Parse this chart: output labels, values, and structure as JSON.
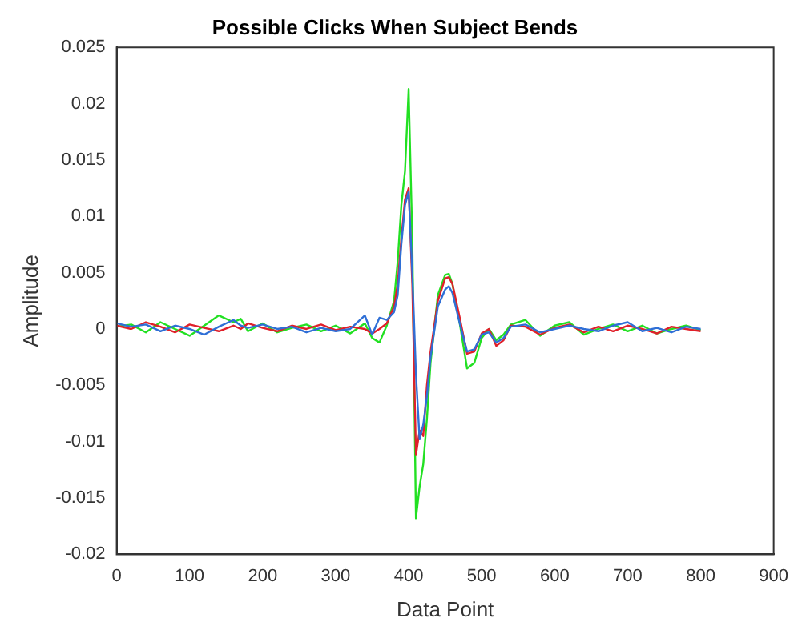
{
  "chart_data": {
    "type": "line",
    "title": "Possible Clicks When Subject Bends",
    "xlabel": "Data Point",
    "ylabel": "Amplitude",
    "x": [
      0,
      20,
      40,
      60,
      80,
      100,
      120,
      140,
      160,
      170,
      180,
      200,
      220,
      240,
      260,
      280,
      300,
      320,
      340,
      350,
      360,
      370,
      380,
      385,
      390,
      395,
      400,
      405,
      410,
      415,
      420,
      425,
      430,
      440,
      450,
      455,
      460,
      470,
      480,
      490,
      500,
      510,
      520,
      530,
      540,
      560,
      580,
      600,
      620,
      640,
      660,
      680,
      700,
      720,
      740,
      760,
      780,
      800
    ],
    "series": [
      {
        "color": "#2f6fd6",
        "values": [
          0.0005,
          0.0002,
          0.0004,
          -0.0002,
          0.0003,
          0.0,
          -0.0005,
          0.0002,
          0.0008,
          0.0003,
          0.0001,
          0.0004,
          0.0,
          0.0002,
          -0.0003,
          0.0001,
          -0.0002,
          0.0,
          0.0012,
          -0.0005,
          0.001,
          0.0008,
          0.0015,
          0.003,
          0.0075,
          0.011,
          0.0122,
          0.005,
          -0.004,
          -0.0098,
          -0.0085,
          -0.006,
          -0.0025,
          0.002,
          0.0035,
          0.0038,
          0.0032,
          0.0005,
          -0.002,
          -0.0018,
          -0.0005,
          -0.0003,
          -0.0012,
          -0.0008,
          0.0002,
          0.0004,
          -0.0003,
          0.0,
          0.0003,
          0.0,
          -0.0002,
          0.0003,
          0.0006,
          -0.0002,
          0.0001,
          -0.0003,
          0.0002,
          0.0
        ]
      },
      {
        "color": "#e0202a",
        "values": [
          0.0003,
          0.0,
          0.0006,
          0.0002,
          -0.0003,
          0.0004,
          0.0001,
          -0.0002,
          0.0003,
          0.0,
          0.0005,
          0.0001,
          -0.0002,
          0.0003,
          0.0,
          0.0004,
          -0.0001,
          0.0002,
          0.0,
          -0.0004,
          0.0,
          0.0005,
          0.002,
          0.004,
          0.008,
          0.0115,
          0.0125,
          0.004,
          -0.0112,
          -0.009,
          -0.0095,
          -0.005,
          -0.002,
          0.0025,
          0.0045,
          0.0046,
          0.004,
          0.001,
          -0.0022,
          -0.002,
          -0.0004,
          0.0,
          -0.0015,
          -0.001,
          0.0003,
          0.0002,
          -0.0005,
          0.0001,
          0.0004,
          -0.0003,
          0.0002,
          -0.0002,
          0.0003,
          0.0,
          -0.0004,
          0.0002,
          0.0,
          -0.0002
        ]
      },
      {
        "color": "#22e022",
        "values": [
          0.0002,
          0.0004,
          -0.0003,
          0.0006,
          0.0,
          -0.0006,
          0.0003,
          0.0012,
          0.0006,
          0.0009,
          -0.0002,
          0.0005,
          -0.0003,
          0.0001,
          0.0004,
          -0.0002,
          0.0003,
          -0.0004,
          0.0005,
          -0.0008,
          -0.0012,
          0.0003,
          0.0025,
          0.006,
          0.011,
          0.014,
          0.0213,
          0.008,
          -0.0168,
          -0.014,
          -0.012,
          -0.008,
          -0.003,
          0.003,
          0.0048,
          0.0049,
          0.004,
          0.0005,
          -0.0035,
          -0.003,
          -0.0008,
          0.0,
          -0.001,
          -0.0005,
          0.0004,
          0.0008,
          -0.0006,
          0.0003,
          0.0006,
          -0.0005,
          0.0,
          0.0004,
          -0.0002,
          0.0003,
          -0.0004,
          0.0,
          0.0003,
          -0.0001
        ]
      }
    ],
    "xlim": [
      0,
      900
    ],
    "xticks": [
      0,
      100,
      200,
      300,
      400,
      500,
      600,
      700,
      800,
      900
    ],
    "ylim": [
      -0.02,
      0.025
    ],
    "yticks": [
      -0.02,
      -0.015,
      -0.01,
      -0.005,
      0,
      0.005,
      0.01,
      0.015,
      0.02,
      0.025
    ],
    "grid": false,
    "legend": false
  }
}
